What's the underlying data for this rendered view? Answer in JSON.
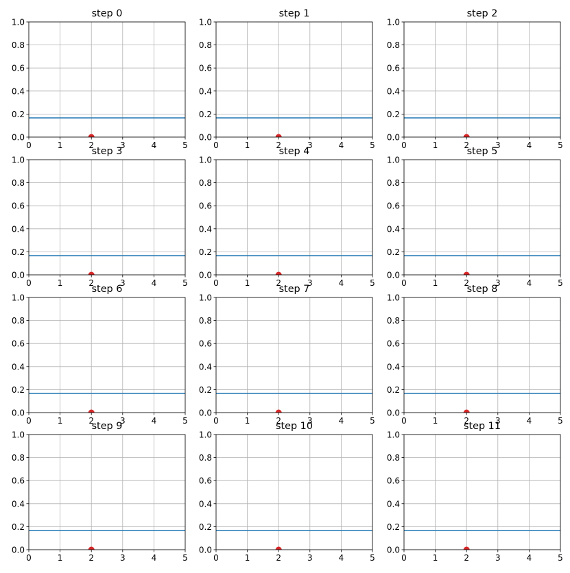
{
  "chart_data": [
    {
      "type": "line",
      "title": "step 0",
      "xlim": [
        0,
        5
      ],
      "ylim": [
        0,
        1
      ],
      "xticks": [
        "0",
        "1",
        "2",
        "3",
        "4",
        "5"
      ],
      "yticks": [
        "0.0",
        "0.2",
        "0.4",
        "0.6",
        "0.8",
        "1.0"
      ],
      "grid": true,
      "hline": {
        "y": 0.167,
        "color": "#1f77b4"
      },
      "point": {
        "x": 2,
        "y": 0,
        "color": "#d62728"
      }
    },
    {
      "type": "line",
      "title": "step 1",
      "xlim": [
        0,
        5
      ],
      "ylim": [
        0,
        1
      ],
      "xticks": [
        "0",
        "1",
        "2",
        "3",
        "4",
        "5"
      ],
      "yticks": [
        "0.0",
        "0.2",
        "0.4",
        "0.6",
        "0.8",
        "1.0"
      ],
      "grid": true,
      "hline": {
        "y": 0.167,
        "color": "#1f77b4"
      },
      "point": {
        "x": 2,
        "y": 0,
        "color": "#d62728"
      }
    },
    {
      "type": "line",
      "title": "step 2",
      "xlim": [
        0,
        5
      ],
      "ylim": [
        0,
        1
      ],
      "xticks": [
        "0",
        "1",
        "2",
        "3",
        "4",
        "5"
      ],
      "yticks": [
        "0.0",
        "0.2",
        "0.4",
        "0.6",
        "0.8",
        "1.0"
      ],
      "grid": true,
      "hline": {
        "y": 0.167,
        "color": "#1f77b4"
      },
      "point": {
        "x": 2,
        "y": 0,
        "color": "#d62728"
      }
    },
    {
      "type": "line",
      "title": "step 3",
      "xlim": [
        0,
        5
      ],
      "ylim": [
        0,
        1
      ],
      "xticks": [
        "0",
        "1",
        "2",
        "3",
        "4",
        "5"
      ],
      "yticks": [
        "0.0",
        "0.2",
        "0.4",
        "0.6",
        "0.8",
        "1.0"
      ],
      "grid": true,
      "hline": {
        "y": 0.167,
        "color": "#1f77b4"
      },
      "point": {
        "x": 2,
        "y": 0,
        "color": "#d62728"
      }
    },
    {
      "type": "line",
      "title": "step 4",
      "xlim": [
        0,
        5
      ],
      "ylim": [
        0,
        1
      ],
      "xticks": [
        "0",
        "1",
        "2",
        "3",
        "4",
        "5"
      ],
      "yticks": [
        "0.0",
        "0.2",
        "0.4",
        "0.6",
        "0.8",
        "1.0"
      ],
      "grid": true,
      "hline": {
        "y": 0.167,
        "color": "#1f77b4"
      },
      "point": {
        "x": 2,
        "y": 0,
        "color": "#d62728"
      }
    },
    {
      "type": "line",
      "title": "step 5",
      "xlim": [
        0,
        5
      ],
      "ylim": [
        0,
        1
      ],
      "xticks": [
        "0",
        "1",
        "2",
        "3",
        "4",
        "5"
      ],
      "yticks": [
        "0.0",
        "0.2",
        "0.4",
        "0.6",
        "0.8",
        "1.0"
      ],
      "grid": true,
      "hline": {
        "y": 0.167,
        "color": "#1f77b4"
      },
      "point": {
        "x": 2,
        "y": 0,
        "color": "#d62728"
      }
    },
    {
      "type": "line",
      "title": "step 6",
      "xlim": [
        0,
        5
      ],
      "ylim": [
        0,
        1
      ],
      "xticks": [
        "0",
        "1",
        "2",
        "3",
        "4",
        "5"
      ],
      "yticks": [
        "0.0",
        "0.2",
        "0.4",
        "0.6",
        "0.8",
        "1.0"
      ],
      "grid": true,
      "hline": {
        "y": 0.167,
        "color": "#1f77b4"
      },
      "point": {
        "x": 2,
        "y": 0,
        "color": "#d62728"
      }
    },
    {
      "type": "line",
      "title": "step 7",
      "xlim": [
        0,
        5
      ],
      "ylim": [
        0,
        1
      ],
      "xticks": [
        "0",
        "1",
        "2",
        "3",
        "4",
        "5"
      ],
      "yticks": [
        "0.0",
        "0.2",
        "0.4",
        "0.6",
        "0.8",
        "1.0"
      ],
      "grid": true,
      "hline": {
        "y": 0.167,
        "color": "#1f77b4"
      },
      "point": {
        "x": 2,
        "y": 0,
        "color": "#d62728"
      }
    },
    {
      "type": "line",
      "title": "step 8",
      "xlim": [
        0,
        5
      ],
      "ylim": [
        0,
        1
      ],
      "xticks": [
        "0",
        "1",
        "2",
        "3",
        "4",
        "5"
      ],
      "yticks": [
        "0.0",
        "0.2",
        "0.4",
        "0.6",
        "0.8",
        "1.0"
      ],
      "grid": true,
      "hline": {
        "y": 0.167,
        "color": "#1f77b4"
      },
      "point": {
        "x": 2,
        "y": 0,
        "color": "#d62728"
      }
    },
    {
      "type": "line",
      "title": "step 9",
      "xlim": [
        0,
        5
      ],
      "ylim": [
        0,
        1
      ],
      "xticks": [
        "0",
        "1",
        "2",
        "3",
        "4",
        "5"
      ],
      "yticks": [
        "0.0",
        "0.2",
        "0.4",
        "0.6",
        "0.8",
        "1.0"
      ],
      "grid": true,
      "hline": {
        "y": 0.167,
        "color": "#1f77b4"
      },
      "point": {
        "x": 2,
        "y": 0,
        "color": "#d62728"
      }
    },
    {
      "type": "line",
      "title": "step 10",
      "xlim": [
        0,
        5
      ],
      "ylim": [
        0,
        1
      ],
      "xticks": [
        "0",
        "1",
        "2",
        "3",
        "4",
        "5"
      ],
      "yticks": [
        "0.0",
        "0.2",
        "0.4",
        "0.6",
        "0.8",
        "1.0"
      ],
      "grid": true,
      "hline": {
        "y": 0.167,
        "color": "#1f77b4"
      },
      "point": {
        "x": 2,
        "y": 0,
        "color": "#d62728"
      }
    },
    {
      "type": "line",
      "title": "step 11",
      "xlim": [
        0,
        5
      ],
      "ylim": [
        0,
        1
      ],
      "xticks": [
        "0",
        "1",
        "2",
        "3",
        "4",
        "5"
      ],
      "yticks": [
        "0.0",
        "0.2",
        "0.4",
        "0.6",
        "0.8",
        "1.0"
      ],
      "grid": true,
      "hline": {
        "y": 0.167,
        "color": "#1f77b4"
      },
      "point": {
        "x": 2,
        "y": 0,
        "color": "#d62728"
      }
    }
  ]
}
